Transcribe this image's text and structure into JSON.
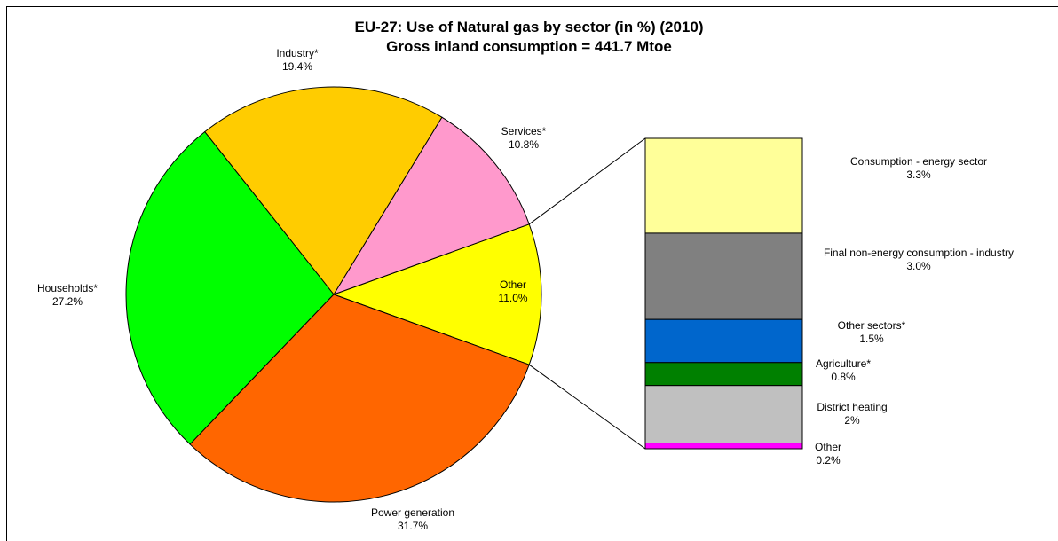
{
  "chart_data": {
    "type": "pie-of-bar",
    "title": "EU-27: Use of Natural gas by sector (in %) (2010)",
    "subtitle": "Gross inland consumption = 441.7 Mtoe",
    "categories": [
      "Other",
      "Services*",
      "Industry*",
      "Households*",
      "Power generation"
    ],
    "values": [
      11.0,
      10.8,
      19.4,
      27.2,
      31.7
    ],
    "value_labels": [
      "11.0%",
      "10.8%",
      "19.4%",
      "27.2%",
      "31.7%"
    ],
    "colors": [
      "#ffff00",
      "#ff99cc",
      "#ffcc00",
      "#00ff00",
      "#ff6600"
    ],
    "breakdown": {
      "categories": [
        "Consumption  - energy sector",
        "Final non-energy consumption - industry",
        "Other sectors*",
        "Agriculture*",
        "District heating",
        "Other"
      ],
      "values": [
        3.3,
        3.0,
        1.5,
        0.8,
        2,
        0.2
      ],
      "value_labels": [
        "3.3%",
        "3.0%",
        "1.5%",
        "0.8%",
        "2%",
        "0.2%"
      ],
      "colors": [
        "#ffff99",
        "#808080",
        "#0066cc",
        "#008000",
        "#c0c0c0",
        "#ff00ff"
      ]
    }
  }
}
